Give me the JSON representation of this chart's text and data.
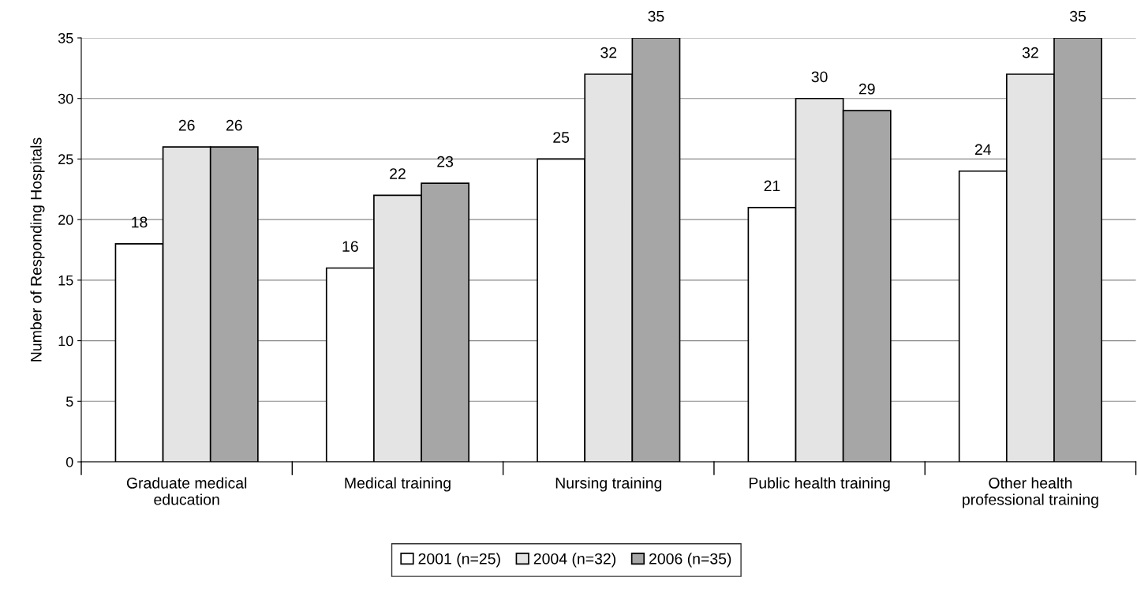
{
  "chart_data": {
    "type": "bar",
    "ylabel": "Number of Responding Hospitals",
    "categories": [
      "Graduate medical\neducation",
      "Medical training",
      "Nursing training",
      "Public health training",
      "Other health\nprofessional training"
    ],
    "series": [
      {
        "name": "2001 (n=25)",
        "color": "#ffffff",
        "values": [
          18,
          16,
          25,
          21,
          24
        ]
      },
      {
        "name": "2004 (n=32)",
        "color": "#e4e4e4",
        "values": [
          26,
          22,
          32,
          30,
          32
        ]
      },
      {
        "name": "2006 (n=35)",
        "color": "#a6a6a6",
        "values": [
          26,
          23,
          35,
          29,
          35
        ]
      }
    ],
    "ylim": [
      0,
      35
    ],
    "yticks": [
      0,
      5,
      10,
      15,
      20,
      25,
      30,
      35
    ],
    "grid": "y",
    "legend": "bottom",
    "data_labels": true
  }
}
